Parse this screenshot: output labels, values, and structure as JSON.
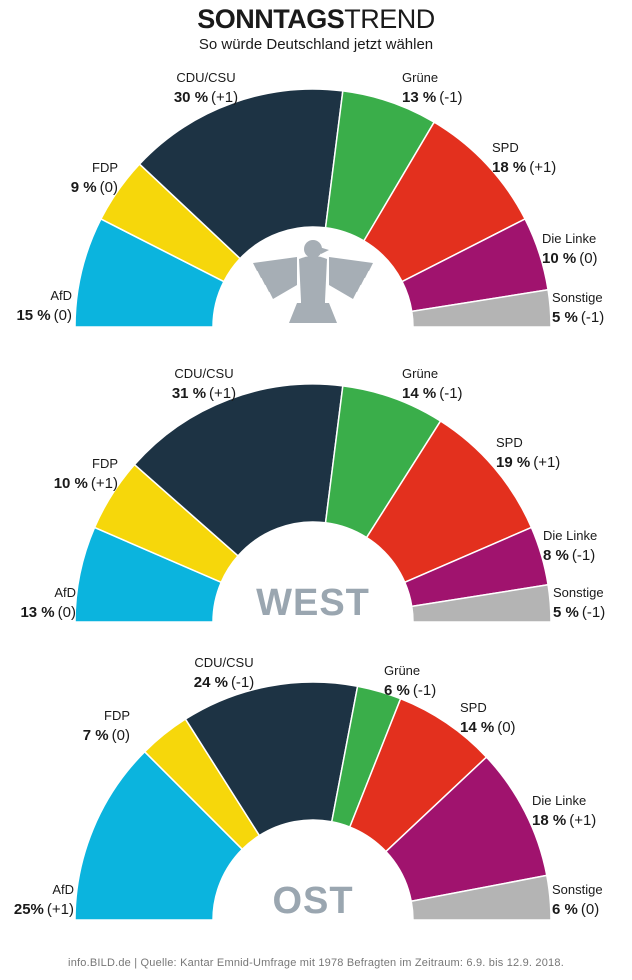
{
  "header": {
    "title_bold": "SONNTAGS",
    "title_light": "TREND",
    "subtitle": "So würde Deutschland jetzt wählen"
  },
  "footer": "info.BILD.de | Quelle: Kantar Emnid-Umfrage mit 1978 Befragten im Zeitraum: 6.9. bis 12.9. 2018.",
  "colors": {
    "AfD": "#0bb4de",
    "FDP": "#f6d70b",
    "CDU/CSU": "#1d3344",
    "Grüne": "#3aae4a",
    "SPD": "#e3301e",
    "Die Linke": "#a0136e",
    "Sonstige": "#b4b4b4"
  },
  "chart_data": [
    {
      "type": "pie",
      "variant": "half-donut",
      "center_label": "",
      "center_icon": "federal-eagle-icon",
      "categories": [
        "AfD",
        "FDP",
        "CDU/CSU",
        "Grüne",
        "SPD",
        "Die Linke",
        "Sonstige"
      ],
      "values": [
        15,
        9,
        30,
        13,
        18,
        10,
        5
      ],
      "value_labels": [
        "15 %",
        "9 %",
        "30 %",
        "13 %",
        "18 %",
        "10 %",
        "5 %"
      ],
      "changes": [
        "(0)",
        "(0)",
        "(+1)",
        "(-1)",
        "(+1)",
        "(0)",
        "(-1)"
      ]
    },
    {
      "type": "pie",
      "variant": "half-donut",
      "center_label": "WEST",
      "categories": [
        "AfD",
        "FDP",
        "CDU/CSU",
        "Grüne",
        "SPD",
        "Die Linke",
        "Sonstige"
      ],
      "values": [
        13,
        10,
        31,
        14,
        19,
        8,
        5
      ],
      "value_labels": [
        "13 %",
        "10 %",
        "31 %",
        "14 %",
        "19 %",
        "8 %",
        "5 %"
      ],
      "changes": [
        "(0)",
        "(+1)",
        "(+1)",
        "(-1)",
        "(+1)",
        "(-1)",
        "(-1)"
      ]
    },
    {
      "type": "pie",
      "variant": "half-donut",
      "center_label": "OST",
      "categories": [
        "AfD",
        "FDP",
        "CDU/CSU",
        "Grüne",
        "SPD",
        "Die Linke",
        "Sonstige"
      ],
      "values": [
        25,
        7,
        24,
        6,
        14,
        18,
        6
      ],
      "value_labels": [
        "25%",
        "7 %",
        "24 %",
        "6 %",
        "14 %",
        "18 %",
        "6 %"
      ],
      "changes": [
        "(+1)",
        "(0)",
        "(-1)",
        "(-1)",
        "(0)",
        "(+1)",
        "(0)"
      ]
    }
  ]
}
